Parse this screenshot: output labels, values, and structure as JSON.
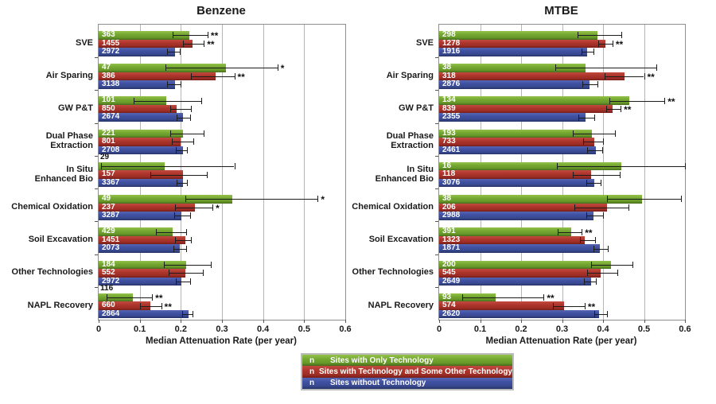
{
  "legend": {
    "items": [
      {
        "symbol": "n",
        "label": "Sites with Only Technology",
        "color": "#74a731"
      },
      {
        "symbol": "n",
        "label": "Sites with Technology and Some Other Technology",
        "color": "#ad352c"
      },
      {
        "symbol": "n",
        "label": "Sites without Technology",
        "color": "#3f50a2"
      }
    ]
  },
  "chart_data": [
    {
      "type": "bar",
      "orientation": "horizontal",
      "title": "Benzene",
      "xlabel": "Median Attenuation Rate (per year)",
      "xlim": [
        0,
        0.6
      ],
      "xticks": [
        "0",
        "0.1",
        "0.2",
        "0.3",
        "0.4",
        "0.5",
        "0.6"
      ],
      "grid": true,
      "series_names": [
        "Sites with Only Technology",
        "Sites with Technology and Some Other Technology",
        "Sites without Technology"
      ],
      "groups": [
        {
          "label": [
            "SVE"
          ],
          "bars": [
            {
              "n": 363,
              "median": 0.22,
              "err_low": 0.18,
              "err_high": 0.265,
              "sig": "**"
            },
            {
              "n": 1455,
              "median": 0.228,
              "err_low": 0.205,
              "err_high": 0.256,
              "sig": "**"
            },
            {
              "n": 2972,
              "median": 0.185,
              "err_low": 0.167,
              "err_high": 0.197,
              "sig": ""
            }
          ]
        },
        {
          "label": [
            "Air Sparing"
          ],
          "bars": [
            {
              "n": 47,
              "median": 0.31,
              "err_low": 0.163,
              "err_high": 0.435,
              "sig": "*"
            },
            {
              "n": 386,
              "median": 0.284,
              "err_low": 0.225,
              "err_high": 0.33,
              "sig": "**"
            },
            {
              "n": 3138,
              "median": 0.185,
              "err_low": 0.167,
              "err_high": 0.2,
              "sig": ""
            }
          ]
        },
        {
          "label": [
            "GW P&T"
          ],
          "bars": [
            {
              "n": 101,
              "median": 0.165,
              "err_low": 0.085,
              "err_high": 0.25,
              "sig": ""
            },
            {
              "n": 850,
              "median": 0.19,
              "err_low": 0.175,
              "err_high": 0.225,
              "sig": ""
            },
            {
              "n": 2674,
              "median": 0.205,
              "err_low": 0.19,
              "err_high": 0.222,
              "sig": ""
            }
          ]
        },
        {
          "label": [
            "Dual Phase",
            "Extraction"
          ],
          "bars": [
            {
              "n": 221,
              "median": 0.205,
              "err_low": 0.175,
              "err_high": 0.255,
              "sig": ""
            },
            {
              "n": 801,
              "median": 0.2,
              "err_low": 0.178,
              "err_high": 0.23,
              "sig": ""
            },
            {
              "n": 2708,
              "median": 0.205,
              "err_low": 0.187,
              "err_high": 0.215,
              "sig": ""
            }
          ]
        },
        {
          "label": [
            "In Situ",
            "Enhanced Bio"
          ],
          "bars": [
            {
              "n": 29,
              "median": 0.16,
              "err_low": 0.005,
              "err_high": 0.33,
              "sig": "",
              "n_label_position": "above"
            },
            {
              "n": 157,
              "median": 0.205,
              "err_low": 0.126,
              "err_high": 0.263,
              "sig": ""
            },
            {
              "n": 3367,
              "median": 0.205,
              "err_low": 0.19,
              "err_high": 0.215,
              "sig": ""
            }
          ]
        },
        {
          "label": [
            "Chemical Oxidation"
          ],
          "bars": [
            {
              "n": 49,
              "median": 0.325,
              "err_low": 0.21,
              "err_high": 0.533,
              "sig": "*"
            },
            {
              "n": 237,
              "median": 0.235,
              "err_low": 0.185,
              "err_high": 0.277,
              "sig": "*"
            },
            {
              "n": 3287,
              "median": 0.202,
              "err_low": 0.184,
              "err_high": 0.222,
              "sig": ""
            }
          ]
        },
        {
          "label": [
            "Soil Excavation"
          ],
          "bars": [
            {
              "n": 429,
              "median": 0.18,
              "err_low": 0.14,
              "err_high": 0.213,
              "sig": ""
            },
            {
              "n": 1451,
              "median": 0.21,
              "err_low": 0.185,
              "err_high": 0.225,
              "sig": ""
            },
            {
              "n": 2073,
              "median": 0.197,
              "err_low": 0.181,
              "err_high": 0.212,
              "sig": ""
            }
          ]
        },
        {
          "label": [
            "Other Technologies"
          ],
          "bars": [
            {
              "n": 184,
              "median": 0.213,
              "err_low": 0.158,
              "err_high": 0.273,
              "sig": ""
            },
            {
              "n": 552,
              "median": 0.21,
              "err_low": 0.17,
              "err_high": 0.253,
              "sig": ""
            },
            {
              "n": 2972,
              "median": 0.202,
              "err_low": 0.187,
              "err_high": 0.222,
              "sig": ""
            }
          ]
        },
        {
          "label": [
            "NAPL Recovery"
          ],
          "bars": [
            {
              "n": 116,
              "median": 0.083,
              "err_low": 0.02,
              "err_high": 0.13,
              "sig": "**",
              "n_label_position": "above"
            },
            {
              "n": 660,
              "median": 0.126,
              "err_low": 0.1,
              "err_high": 0.152,
              "sig": "**"
            },
            {
              "n": 2864,
              "median": 0.218,
              "err_low": 0.203,
              "err_high": 0.228,
              "sig": ""
            }
          ]
        }
      ]
    },
    {
      "type": "bar",
      "orientation": "horizontal",
      "title": "MTBE",
      "xlabel": "Median Attenuation Rate (per year)",
      "xlim": [
        0,
        0.6
      ],
      "xticks": [
        "0",
        "0.1",
        "0.2",
        "0.3",
        "0.4",
        "0.5",
        "0.6"
      ],
      "grid": true,
      "series_names": [
        "Sites with Only Technology",
        "Sites with Technology and Some Other Technology",
        "Sites without Technology"
      ],
      "groups": [
        {
          "label": [
            "SVE"
          ],
          "bars": [
            {
              "n": 298,
              "median": 0.386,
              "err_low": 0.338,
              "err_high": 0.445,
              "sig": ""
            },
            {
              "n": 1278,
              "median": 0.406,
              "err_low": 0.388,
              "err_high": 0.423,
              "sig": "**"
            },
            {
              "n": 1916,
              "median": 0.362,
              "err_low": 0.348,
              "err_high": 0.377,
              "sig": ""
            }
          ]
        },
        {
          "label": [
            "Air Sparing"
          ],
          "bars": [
            {
              "n": 38,
              "median": 0.357,
              "err_low": 0.283,
              "err_high": 0.53,
              "sig": ""
            },
            {
              "n": 318,
              "median": 0.453,
              "err_low": 0.403,
              "err_high": 0.5,
              "sig": "**"
            },
            {
              "n": 2876,
              "median": 0.367,
              "err_low": 0.35,
              "err_high": 0.386,
              "sig": ""
            }
          ]
        },
        {
          "label": [
            "GW P&T"
          ],
          "bars": [
            {
              "n": 134,
              "median": 0.465,
              "err_low": 0.415,
              "err_high": 0.55,
              "sig": "**"
            },
            {
              "n": 839,
              "median": 0.423,
              "err_low": 0.408,
              "err_high": 0.443,
              "sig": "**"
            },
            {
              "n": 2355,
              "median": 0.358,
              "err_low": 0.34,
              "err_high": 0.378,
              "sig": ""
            }
          ]
        },
        {
          "label": [
            "Dual Phase",
            "Extraction"
          ],
          "bars": [
            {
              "n": 193,
              "median": 0.373,
              "err_low": 0.327,
              "err_high": 0.43,
              "sig": ""
            },
            {
              "n": 733,
              "median": 0.378,
              "err_low": 0.352,
              "err_high": 0.4,
              "sig": ""
            },
            {
              "n": 2461,
              "median": 0.382,
              "err_low": 0.362,
              "err_high": 0.399,
              "sig": ""
            }
          ]
        },
        {
          "label": [
            "In Situ",
            "Enhanced Bio"
          ],
          "bars": [
            {
              "n": 16,
              "median": 0.445,
              "err_low": 0.287,
              "err_high": 0.6,
              "sig": ""
            },
            {
              "n": 118,
              "median": 0.371,
              "err_low": 0.326,
              "err_high": 0.44,
              "sig": ""
            },
            {
              "n": 3076,
              "median": 0.378,
              "err_low": 0.36,
              "err_high": 0.395,
              "sig": ""
            }
          ]
        },
        {
          "label": [
            "Chemical Oxidation"
          ],
          "bars": [
            {
              "n": 38,
              "median": 0.495,
              "err_low": 0.41,
              "err_high": 0.59,
              "sig": ""
            },
            {
              "n": 206,
              "median": 0.41,
              "err_low": 0.33,
              "err_high": 0.463,
              "sig": ""
            },
            {
              "n": 2988,
              "median": 0.377,
              "err_low": 0.36,
              "err_high": 0.4,
              "sig": ""
            }
          ]
        },
        {
          "label": [
            "Soil Excavation"
          ],
          "bars": [
            {
              "n": 391,
              "median": 0.322,
              "err_low": 0.29,
              "err_high": 0.348,
              "sig": "**"
            },
            {
              "n": 1323,
              "median": 0.355,
              "err_low": 0.343,
              "err_high": 0.38,
              "sig": ""
            },
            {
              "n": 1871,
              "median": 0.393,
              "err_low": 0.376,
              "err_high": 0.412,
              "sig": ""
            }
          ]
        },
        {
          "label": [
            "Other Technologies"
          ],
          "bars": [
            {
              "n": 200,
              "median": 0.42,
              "err_low": 0.37,
              "err_high": 0.472,
              "sig": ""
            },
            {
              "n": 545,
              "median": 0.395,
              "err_low": 0.361,
              "err_high": 0.434,
              "sig": ""
            },
            {
              "n": 2649,
              "median": 0.371,
              "err_low": 0.353,
              "err_high": 0.383,
              "sig": ""
            }
          ]
        },
        {
          "label": [
            "NAPL Recovery"
          ],
          "bars": [
            {
              "n": 93,
              "median": 0.137,
              "err_low": 0.057,
              "err_high": 0.255,
              "sig": "**"
            },
            {
              "n": 574,
              "median": 0.305,
              "err_low": 0.278,
              "err_high": 0.355,
              "sig": "**"
            },
            {
              "n": 2620,
              "median": 0.39,
              "err_low": 0.379,
              "err_high": 0.41,
              "sig": ""
            }
          ]
        }
      ]
    }
  ]
}
